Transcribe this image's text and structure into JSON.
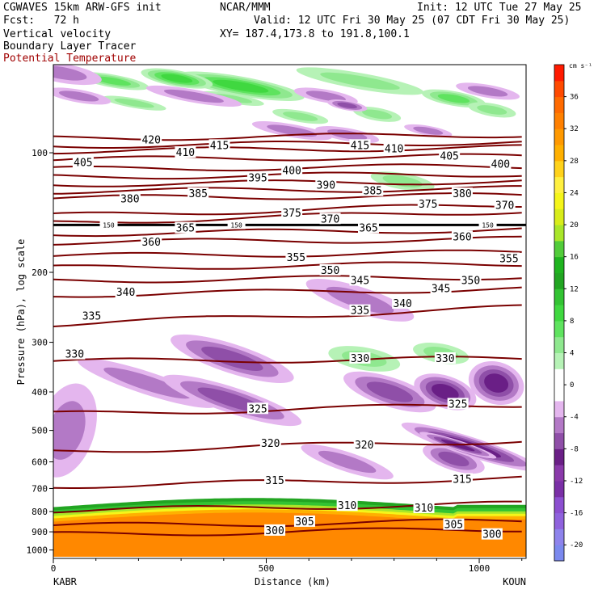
{
  "header": {
    "model": "CGWAVES 15km ARW-GFS init",
    "org": "NCAR/MMM",
    "init": "Init: 12 UTC Tue 27 May 25",
    "fcst": "Fcst:   72 h",
    "valid": "Valid: 12 UTC Fri 30 May 25 (07 CDT Fri 30 May 25)",
    "xy": "XY= 187.4,173.8 to 191.8,100.1",
    "field1": "Vertical velocity",
    "field2": "Boundary Layer Tracer",
    "field3": "Potential Temperature"
  },
  "colors": {
    "theta_line": "#7a0000",
    "tropopause_line": "#000000",
    "terrain": "#ff8800"
  },
  "chart_data": {
    "type": "heatmap",
    "title": "",
    "xlabel": "Distance (km)",
    "ylabel": "Pressure (hPa), log scale",
    "x_ticks": [
      "0",
      "500",
      "1000"
    ],
    "x_tick_values": [
      0,
      500,
      1000
    ],
    "xlim": [
      0,
      1110
    ],
    "y_ticks": [
      "100",
      "200",
      "300",
      "400",
      "500",
      "600",
      "700",
      "800",
      "900",
      "1000"
    ],
    "ylim": [
      1050,
      60
    ],
    "y_scale": "log",
    "endpoints": {
      "left": "KABR",
      "right": "KOUN"
    },
    "colorbar": {
      "units": "cm s⁻¹",
      "tick_labels": [
        "36",
        "32",
        "28",
        "24",
        "20",
        "16",
        "12",
        "8",
        "4",
        "0",
        "-4",
        "-8",
        "-12",
        "-16",
        "-20"
      ],
      "tick_values": [
        36,
        32,
        28,
        24,
        20,
        16,
        12,
        8,
        4,
        0,
        -4,
        -8,
        -12,
        -16,
        -20
      ],
      "range": [
        -22,
        40
      ],
      "levels": [
        {
          "from": -22,
          "to": -20,
          "color": "#7b89ee"
        },
        {
          "from": -20,
          "to": -18,
          "color": "#8e83ec"
        },
        {
          "from": -18,
          "to": -16,
          "color": "#8f62dd"
        },
        {
          "from": -16,
          "to": -14,
          "color": "#8c4fd0"
        },
        {
          "from": -14,
          "to": -12,
          "color": "#7a2fa6"
        },
        {
          "from": -12,
          "to": -10,
          "color": "#8a3aaa"
        },
        {
          "from": -10,
          "to": -8,
          "color": "#6a1f86"
        },
        {
          "from": -8,
          "to": -6,
          "color": "#8f4fa8"
        },
        {
          "from": -6,
          "to": -4,
          "color": "#b379c6"
        },
        {
          "from": -4,
          "to": -2,
          "color": "#e4b6ee"
        },
        {
          "from": -2,
          "to": 2,
          "color": "#ffffff"
        },
        {
          "from": 2,
          "to": 4,
          "color": "#b6f2b6"
        },
        {
          "from": 4,
          "to": 6,
          "color": "#8fe88f"
        },
        {
          "from": 6,
          "to": 8,
          "color": "#5fe35f"
        },
        {
          "from": 8,
          "to": 10,
          "color": "#40d840"
        },
        {
          "from": 10,
          "to": 12,
          "color": "#33c333"
        },
        {
          "from": 12,
          "to": 14,
          "color": "#22a522"
        },
        {
          "from": 14,
          "to": 16,
          "color": "#1fb41f"
        },
        {
          "from": 16,
          "to": 18,
          "color": "#52cc3a"
        },
        {
          "from": 18,
          "to": 20,
          "color": "#a9e62a"
        },
        {
          "from": 20,
          "to": 22,
          "color": "#d8ec1a"
        },
        {
          "from": 22,
          "to": 24,
          "color": "#f5f51a"
        },
        {
          "from": 24,
          "to": 26,
          "color": "#fff040"
        },
        {
          "from": 26,
          "to": 28,
          "color": "#ffd21a"
        },
        {
          "from": 28,
          "to": 30,
          "color": "#ffb000"
        },
        {
          "from": 30,
          "to": 32,
          "color": "#ff9900"
        },
        {
          "from": 32,
          "to": 34,
          "color": "#ff8000"
        },
        {
          "from": 34,
          "to": 36,
          "color": "#ff6a00"
        },
        {
          "from": 36,
          "to": 38,
          "color": "#ff4a00"
        },
        {
          "from": 38,
          "to": 40,
          "color": "#ff1a00"
        }
      ]
    },
    "tropopause": {
      "label": "150",
      "pressure": 152
    },
    "isentropes": [
      {
        "theta": 300,
        "left_p": 915,
        "right_p": 885,
        "label_x": 520
      },
      {
        "theta": 305,
        "left_p": 870,
        "right_p": 845,
        "label_x": 595
      },
      {
        "theta": 310,
        "left_p": 795,
        "right_p": 765,
        "label_x": 690
      },
      {
        "theta": 315,
        "left_p": 690,
        "right_p": 660,
        "label_x": 520
      },
      {
        "theta": 320,
        "left_p": 565,
        "right_p": 530,
        "label_x": 720
      },
      {
        "theta": 325,
        "left_p": 455,
        "right_p": 430,
        "label_x": 490
      },
      {
        "theta": 330,
        "left_p": 335,
        "right_p": 330,
        "label_x": 720
      },
      {
        "theta": 335,
        "left_p": 270,
        "right_p": 245,
        "label_x": 560
      },
      {
        "theta": 340,
        "left_p": 228,
        "right_p": 220,
        "label_x": 640
      },
      {
        "theta": 345,
        "left_p": 210,
        "right_p": 205,
        "label_x": 420
      },
      {
        "theta": 350,
        "left_p": 195,
        "right_p": 190,
        "label_x": 730
      },
      {
        "theta": 355,
        "left_p": 182,
        "right_p": 178,
        "label_x": 850
      },
      {
        "theta": 360,
        "left_p": 168,
        "right_p": 165,
        "label_x": 990
      },
      {
        "theta": 365,
        "left_p": 160,
        "right_p": 156,
        "label_x": 310
      },
      {
        "theta": 370,
        "left_p": 150,
        "right_p": 140,
        "label_x": 1100
      },
      {
        "theta": 375,
        "left_p": 144,
        "right_p": 135,
        "label_x": 930
      },
      {
        "theta": 380,
        "left_p": 130,
        "right_p": 128,
        "label_x": 950
      },
      {
        "theta": 385,
        "left_p": 125,
        "right_p": 123,
        "label_x": 760
      },
      {
        "theta": 390,
        "left_p": 120,
        "right_p": 118,
        "label_x": 980
      },
      {
        "theta": 395,
        "left_p": 115,
        "right_p": 113,
        "label_x": 470
      },
      {
        "theta": 400,
        "left_p": 110,
        "right_p": 108,
        "label_x": 1080
      },
      {
        "theta": 405,
        "left_p": 104,
        "right_p": 102,
        "label_x": 960
      },
      {
        "theta": 410,
        "left_p": 99,
        "right_p": 97,
        "label_x": 800
      },
      {
        "theta": 415,
        "left_p": 96,
        "right_p": 94,
        "label_x": 380
      },
      {
        "theta": 420,
        "left_p": 92,
        "right_p": 90,
        "label_x": 230
      }
    ],
    "isentrope_labels": [
      {
        "theta": 300,
        "x": 520,
        "p": 895
      },
      {
        "theta": 300,
        "x": 1030,
        "p": 915
      },
      {
        "theta": 305,
        "x": 590,
        "p": 850
      },
      {
        "theta": 305,
        "x": 940,
        "p": 865
      },
      {
        "theta": 310,
        "x": 690,
        "p": 775
      },
      {
        "theta": 310,
        "x": 870,
        "p": 785
      },
      {
        "theta": 315,
        "x": 520,
        "p": 670
      },
      {
        "theta": 315,
        "x": 960,
        "p": 665
      },
      {
        "theta": 320,
        "x": 510,
        "p": 540
      },
      {
        "theta": 320,
        "x": 730,
        "p": 545
      },
      {
        "theta": 325,
        "x": 480,
        "p": 442
      },
      {
        "theta": 325,
        "x": 950,
        "p": 430
      },
      {
        "theta": 330,
        "x": 50,
        "p": 322
      },
      {
        "theta": 330,
        "x": 720,
        "p": 330
      },
      {
        "theta": 330,
        "x": 920,
        "p": 330
      },
      {
        "theta": 335,
        "x": 90,
        "p": 258
      },
      {
        "theta": 335,
        "x": 720,
        "p": 250
      },
      {
        "theta": 340,
        "x": 170,
        "p": 225
      },
      {
        "theta": 340,
        "x": 820,
        "p": 240
      },
      {
        "theta": 345,
        "x": 720,
        "p": 210
      },
      {
        "theta": 345,
        "x": 910,
        "p": 220
      },
      {
        "theta": 350,
        "x": 650,
        "p": 198
      },
      {
        "theta": 350,
        "x": 980,
        "p": 210
      },
      {
        "theta": 355,
        "x": 570,
        "p": 184
      },
      {
        "theta": 355,
        "x": 1070,
        "p": 185
      },
      {
        "theta": 360,
        "x": 230,
        "p": 168
      },
      {
        "theta": 360,
        "x": 960,
        "p": 163
      },
      {
        "theta": 365,
        "x": 310,
        "p": 155
      },
      {
        "theta": 365,
        "x": 740,
        "p": 155
      },
      {
        "theta": 370,
        "x": 650,
        "p": 147
      },
      {
        "theta": 370,
        "x": 1060,
        "p": 136
      },
      {
        "theta": 375,
        "x": 560,
        "p": 142
      },
      {
        "theta": 375,
        "x": 880,
        "p": 135
      },
      {
        "theta": 380,
        "x": 180,
        "p": 131
      },
      {
        "theta": 380,
        "x": 960,
        "p": 127
      },
      {
        "theta": 385,
        "x": 340,
        "p": 127
      },
      {
        "theta": 385,
        "x": 750,
        "p": 125
      },
      {
        "theta": 390,
        "x": 640,
        "p": 121
      },
      {
        "theta": 395,
        "x": 480,
        "p": 116
      },
      {
        "theta": 400,
        "x": 560,
        "p": 111
      },
      {
        "theta": 400,
        "x": 1050,
        "p": 107
      },
      {
        "theta": 405,
        "x": 70,
        "p": 106
      },
      {
        "theta": 405,
        "x": 930,
        "p": 102
      },
      {
        "theta": 410,
        "x": 310,
        "p": 100
      },
      {
        "theta": 410,
        "x": 800,
        "p": 98
      },
      {
        "theta": 415,
        "x": 390,
        "p": 96
      },
      {
        "theta": 415,
        "x": 720,
        "p": 96
      },
      {
        "theta": 420,
        "x": 230,
        "p": 93
      }
    ],
    "tropopause_labels": [
      {
        "x": 130
      },
      {
        "x": 430
      },
      {
        "x": 1020
      }
    ],
    "vertical_velocity_features": [
      {
        "type": "updraft",
        "x": 440,
        "p": 68,
        "rx": 80,
        "ry": 12,
        "value": 12
      },
      {
        "type": "updraft",
        "x": 290,
        "p": 65,
        "rx": 45,
        "ry": 10,
        "value": 12
      },
      {
        "type": "updraft",
        "x": 140,
        "p": 66,
        "rx": 45,
        "ry": 8,
        "value": 6
      },
      {
        "type": "updraft",
        "x": 720,
        "p": 66,
        "rx": 80,
        "ry": 10,
        "value": 4
      },
      {
        "type": "updraft",
        "x": 940,
        "p": 73,
        "rx": 40,
        "ry": 9,
        "value": 6
      },
      {
        "type": "updraft",
        "x": 760,
        "p": 80,
        "rx": 30,
        "ry": 8,
        "value": 4
      },
      {
        "type": "updraft",
        "x": 190,
        "p": 75,
        "rx": 40,
        "ry": 6,
        "value": 4
      },
      {
        "type": "updraft",
        "x": 580,
        "p": 81,
        "rx": 35,
        "ry": 7,
        "value": 4
      },
      {
        "type": "updraft",
        "x": 420,
        "p": 73,
        "rx": 40,
        "ry": 6,
        "value": 4
      },
      {
        "type": "updraft",
        "x": 1030,
        "p": 78,
        "rx": 30,
        "ry": 8,
        "value": 4
      },
      {
        "type": "updraft",
        "x": 820,
        "p": 118,
        "rx": 40,
        "ry": 10,
        "value": 4
      },
      {
        "type": "updraft",
        "x": 730,
        "p": 330,
        "rx": 45,
        "ry": 14,
        "value": 4
      },
      {
        "type": "updraft",
        "x": 910,
        "p": 320,
        "rx": 35,
        "ry": 12,
        "value": 4
      },
      {
        "type": "downdraft",
        "x": 20,
        "p": 63,
        "rx": 50,
        "ry": 12,
        "value": -4
      },
      {
        "type": "downdraft",
        "x": 60,
        "p": 72,
        "rx": 40,
        "ry": 8,
        "value": -4
      },
      {
        "type": "downdraft",
        "x": 330,
        "p": 72,
        "rx": 60,
        "ry": 8,
        "value": -4
      },
      {
        "type": "downdraft",
        "x": 640,
        "p": 72,
        "rx": 40,
        "ry": 8,
        "value": -4
      },
      {
        "type": "downdraft",
        "x": 690,
        "p": 76,
        "rx": 25,
        "ry": 6,
        "value": -6
      },
      {
        "type": "downdraft",
        "x": 1020,
        "p": 70,
        "rx": 40,
        "ry": 8,
        "value": -4
      },
      {
        "type": "downdraft",
        "x": 560,
        "p": 88,
        "rx": 50,
        "ry": 8,
        "value": -4
      },
      {
        "type": "downdraft",
        "x": 690,
        "p": 90,
        "rx": 40,
        "ry": 8,
        "value": -4
      },
      {
        "type": "downdraft",
        "x": 880,
        "p": 88,
        "rx": 30,
        "ry": 6,
        "value": -4
      },
      {
        "type": "downdraft",
        "x": 220,
        "p": 380,
        "rx": 90,
        "ry": 14,
        "value": -4
      },
      {
        "type": "downdraft",
        "x": 420,
        "p": 330,
        "rx": 80,
        "ry": 18,
        "value": -6
      },
      {
        "type": "downdraft",
        "x": 420,
        "p": 420,
        "rx": 90,
        "ry": 16,
        "value": -6
      },
      {
        "type": "downdraft",
        "x": 720,
        "p": 235,
        "rx": 70,
        "ry": 16,
        "value": -4
      },
      {
        "type": "downdraft",
        "x": 790,
        "p": 400,
        "rx": 60,
        "ry": 18,
        "value": -6
      },
      {
        "type": "downdraft",
        "x": 920,
        "p": 400,
        "rx": 40,
        "ry": 20,
        "value": -8
      },
      {
        "type": "downdraft",
        "x": 1040,
        "p": 380,
        "rx": 35,
        "ry": 26,
        "value": -10
      },
      {
        "type": "downdraft",
        "x": 690,
        "p": 600,
        "rx": 60,
        "ry": 12,
        "value": -4
      },
      {
        "type": "downdraft",
        "x": 940,
        "p": 590,
        "rx": 40,
        "ry": 14,
        "value": -6
      },
      {
        "type": "downdraft",
        "x": 980,
        "p": 550,
        "rx": 90,
        "ry": 12,
        "value": -12
      },
      {
        "type": "downdraft",
        "x": 950,
        "p": 545,
        "rx": 50,
        "ry": 6,
        "value": -18
      },
      {
        "type": "downdraft",
        "x": 30,
        "p": 500,
        "rx": 35,
        "ry": 60,
        "value": -4
      }
    ],
    "boundary_layer": {
      "top_left_p": 780,
      "top_mid_p": 740,
      "top_right_p": 770,
      "bottom_p": 1040,
      "layers": [
        {
          "offset": 0,
          "color": "#22a522"
        },
        {
          "offset": 4,
          "color": "#33c333"
        },
        {
          "offset": 8,
          "color": "#a9e62a"
        },
        {
          "offset": 11,
          "color": "#f5f51a"
        },
        {
          "offset": 14,
          "color": "#ffb000"
        },
        {
          "offset": 18,
          "color": "#ff8800"
        }
      ]
    }
  }
}
